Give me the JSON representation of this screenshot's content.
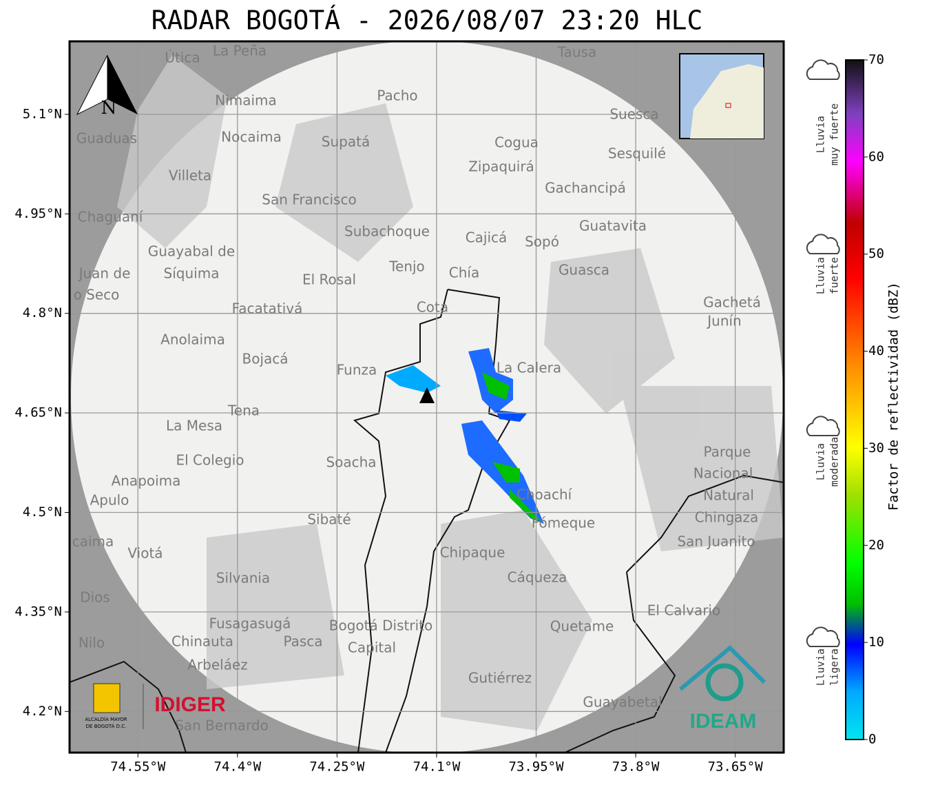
{
  "title": "RADAR BOGOTÁ - 2026/08/07 23:20 HLC",
  "map": {
    "xlim": [
      -74.653,
      -73.577
    ],
    "ylim": [
      4.138,
      5.21
    ],
    "xticks": [
      {
        "value": -74.55,
        "label": "74.55°W"
      },
      {
        "value": -74.4,
        "label": "74.4°W"
      },
      {
        "value": -74.25,
        "label": "74.25°W"
      },
      {
        "value": -74.1,
        "label": "74.1°W"
      },
      {
        "value": -73.95,
        "label": "73.95°W"
      },
      {
        "value": -73.8,
        "label": "73.8°W"
      },
      {
        "value": -73.65,
        "label": "73.65°W"
      }
    ],
    "yticks": [
      {
        "value": 5.1,
        "label": "5.1°N"
      },
      {
        "value": 4.95,
        "label": "4.95°N"
      },
      {
        "value": 4.8,
        "label": "4.8°N"
      },
      {
        "value": 4.65,
        "label": "4.65°N"
      },
      {
        "value": 4.5,
        "label": "4.5°N"
      },
      {
        "value": 4.35,
        "label": "4.35°N"
      },
      {
        "value": 4.2,
        "label": "4.2°N"
      }
    ],
    "north": "N",
    "places": [
      "La Peña",
      "Útica",
      "Tausa",
      "Pacho",
      "Nimaima",
      "Nocaima",
      "Supatá",
      "Guaduas",
      "Suesca",
      "Cogua",
      "Sesquilé",
      "Zipaquirá",
      "Villeta",
      "Gachancipá",
      "San Francisco",
      "Chaguaní",
      "Guatavita",
      "Subachoque",
      "Cajicá",
      "Sopó",
      "Guayabal de",
      "Síquima",
      "Juan de",
      "Tenjo",
      "Chía",
      "Guasca",
      "El Rosal",
      "o Seco",
      "Facatativá",
      "Cota",
      "Gachetá",
      "Junín",
      "Anolaima",
      "Bojacá",
      "Funza",
      "La Calera",
      "Tena",
      "La Mesa",
      "Parque",
      "El Colegio",
      "Soacha",
      "Nacional",
      "Anapoima",
      "Natural",
      "Choachí",
      "Apulo",
      "Chingaza",
      "Sibaté",
      "Fómeque",
      "San Juanito",
      "caima",
      "Viotá",
      "Chipaque",
      "Cáqueza",
      "Silvania",
      "Dios",
      "El Calvario",
      "Fusagasugá",
      "Bogotá Distrito",
      "Quetame",
      "Nilo",
      "Chinauta",
      "Pasca",
      "Capital",
      "Arbeláez",
      "Gutiérrez",
      "Guayabetal",
      "San Bernardo"
    ]
  },
  "colorbar": {
    "label": "Factor de reflectividad (dBZ)",
    "lim": [
      0,
      70
    ],
    "ticks": [
      0,
      10,
      20,
      30,
      40,
      50,
      60,
      70
    ],
    "intensity": [
      [
        "Lluvia",
        "muy fuerte"
      ],
      [
        "Lluvia",
        "fuerte"
      ],
      [
        "Lluvia",
        "moderada"
      ],
      [
        "Lluvia",
        "ligera"
      ]
    ]
  },
  "logos": {
    "alcaldia": [
      "ALCALDÍA MAYOR",
      "DE BOGOTÁ D.C."
    ],
    "idiger": "IDIGER",
    "ideam": "IDEAM"
  }
}
